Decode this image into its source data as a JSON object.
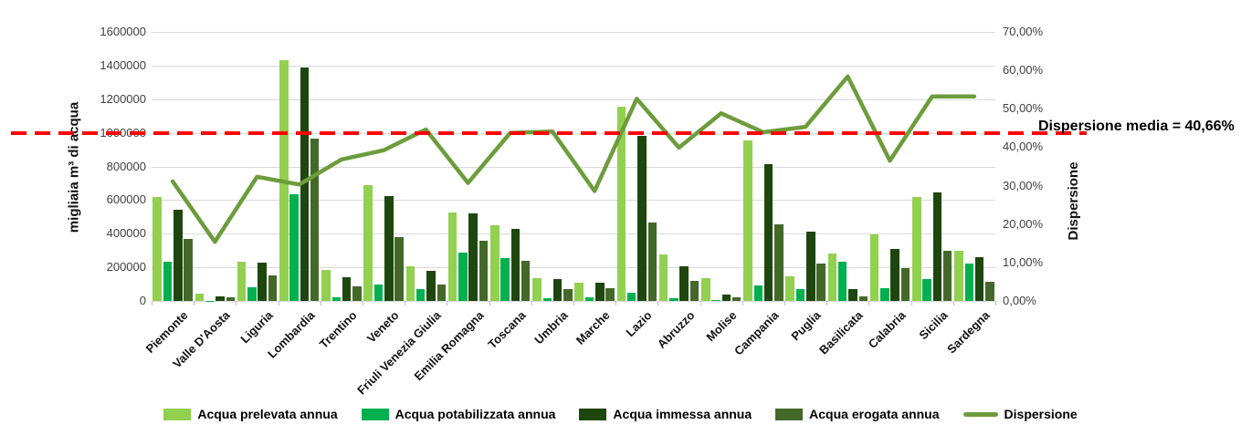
{
  "chart_data": {
    "type": "combo-bar-line",
    "categories": [
      "Piemonte",
      "Valle D'Aosta",
      "Liguria",
      "Lombardia",
      "Trentino",
      "Veneto",
      "Friuli Venezia Giulia",
      "Emilia Romagna",
      "Toscana",
      "Umbria",
      "Marche",
      "Lazio",
      "Abruzzo",
      "Molise",
      "Campania",
      "Puglia",
      "Basilicata",
      "Calabria",
      "Sicilia",
      "Sardegna"
    ],
    "bar_series": [
      {
        "name": "Acqua prelevata annua",
        "color": "#92d050",
        "values": [
          620000,
          46000,
          232000,
          1430000,
          184000,
          690000,
          208000,
          527000,
          449000,
          136000,
          110000,
          1158000,
          275000,
          134000,
          953000,
          145000,
          280000,
          398000,
          620000,
          296000
        ]
      },
      {
        "name": "Acqua potabilizzata annua",
        "color": "#00b050",
        "values": [
          233000,
          2000,
          81000,
          634000,
          23000,
          99000,
          72000,
          289000,
          257000,
          15000,
          23000,
          49000,
          15000,
          5000,
          94000,
          69000,
          235000,
          78000,
          132000,
          224000
        ]
      },
      {
        "name": "Acqua immessa annua",
        "color": "#1d470e",
        "values": [
          540000,
          25000,
          228000,
          1388000,
          143000,
          625000,
          181000,
          521000,
          430000,
          130000,
          107000,
          980000,
          206000,
          40000,
          813000,
          410000,
          70000,
          311000,
          645000,
          258000
        ]
      },
      {
        "name": "Acqua erogata annua",
        "color": "#44682a",
        "values": [
          370000,
          21000,
          154000,
          964000,
          88000,
          380000,
          99000,
          360000,
          239000,
          72000,
          77000,
          466000,
          121000,
          20000,
          455000,
          222000,
          25000,
          195000,
          296000,
          114000
        ]
      }
    ],
    "line_series": {
      "name": "Dispersione",
      "color": "#6d9c3c",
      "values_pct": [
        31.1,
        15.4,
        32.3,
        30.3,
        36.8,
        39.2,
        44.6,
        30.7,
        43.7,
        44.1,
        28.6,
        52.6,
        39.9,
        48.8,
        43.9,
        45.3,
        58.4,
        36.5,
        53.2,
        53.2
      ]
    },
    "left_axis": {
      "label": "migliaia m³ di acqua",
      "min": 0,
      "max": 1600000,
      "step": 200000,
      "ticks": [
        "0",
        "200000",
        "400000",
        "600000",
        "800000",
        "1000000",
        "1200000",
        "1400000",
        "1600000"
      ]
    },
    "right_axis": {
      "label": "Dispersione",
      "min": 0,
      "max": 70,
      "step": 10,
      "ticks": [
        "0,00%",
        "10,00%",
        "20,00%",
        "30,00%",
        "40,00%",
        "50,00%",
        "60,00%",
        "70,00%"
      ]
    },
    "mean_line": {
      "label": "Dispersione media = 40,66%",
      "value_pct": 40.66,
      "drawn_at_left_axis_value": 1000000,
      "color": "#ff0000"
    },
    "grid": "horizontal",
    "legend_position": "bottom"
  }
}
